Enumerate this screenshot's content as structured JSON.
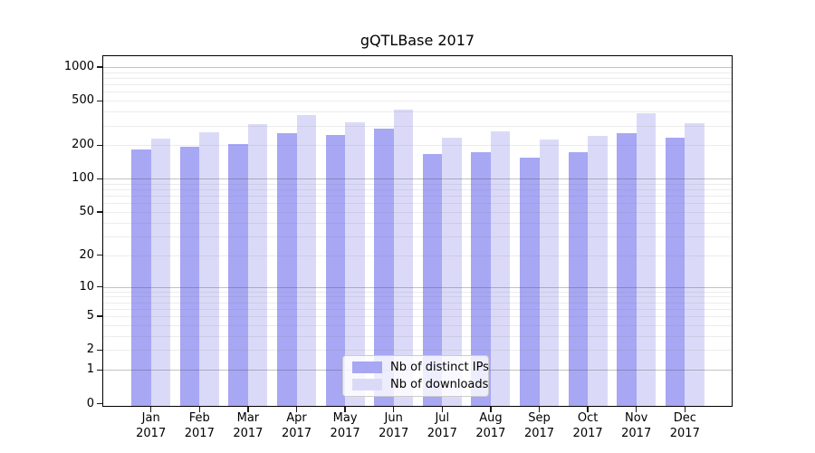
{
  "chart_data": {
    "type": "bar",
    "title": "gQTLBase 2017",
    "categories": [
      "Jan",
      "Feb",
      "Mar",
      "Apr",
      "May",
      "Jun",
      "Jul",
      "Aug",
      "Sep",
      "Oct",
      "Nov",
      "Dec"
    ],
    "x_second_line": "2017",
    "series": [
      {
        "name": "Nb of distinct IPs",
        "color": "#a7a7f4",
        "values": [
          183,
          195,
          206,
          257,
          247,
          282,
          167,
          174,
          154,
          172,
          258,
          233
        ]
      },
      {
        "name": "Nb of downloads",
        "color": "#dadaf8",
        "values": [
          228,
          262,
          310,
          373,
          318,
          415,
          235,
          268,
          224,
          243,
          388,
          315
        ]
      }
    ],
    "y_axis": {
      "scale": "log1p",
      "range": [
        0,
        1270
      ],
      "tick_labels": [
        0,
        1,
        2,
        5,
        10,
        20,
        50,
        100,
        200,
        500,
        1000
      ],
      "decade_gridlines": [
        1,
        10,
        100,
        1000
      ],
      "minor_gridlines": [
        2,
        3,
        4,
        5,
        6,
        7,
        8,
        9,
        20,
        30,
        40,
        50,
        60,
        70,
        80,
        90,
        200,
        300,
        400,
        500,
        600,
        700,
        800,
        900
      ]
    },
    "grid": true,
    "legend_position": "lower center"
  }
}
